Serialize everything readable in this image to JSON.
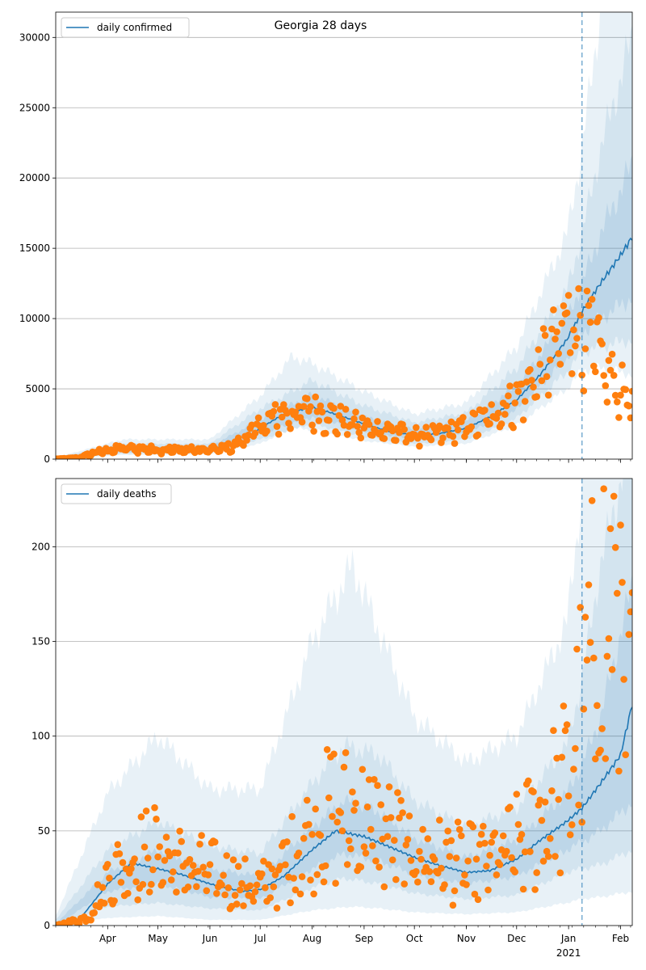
{
  "figure": {
    "title": "Georgia 28 days"
  },
  "chart_data": [
    {
      "type": "scatter",
      "panel": "top",
      "title": "Georgia 28 days",
      "legend": {
        "label": "daily confirmed",
        "placement": "top-left"
      },
      "xlim": [
        "2020-03-01",
        "2021-02-08"
      ],
      "ylim": [
        0,
        31800
      ],
      "yticks": [
        0,
        5000,
        10000,
        15000,
        20000,
        25000,
        30000
      ],
      "grid": "y",
      "forecast_start": "2021-01-09",
      "median_knots": [
        [
          "2020-03-01",
          10
        ],
        [
          "2020-03-20",
          300
        ],
        [
          "2020-04-10",
          700
        ],
        [
          "2020-05-01",
          700
        ],
        [
          "2020-06-01",
          700
        ],
        [
          "2020-06-20",
          1200
        ],
        [
          "2020-07-01",
          2200
        ],
        [
          "2020-07-15",
          3200
        ],
        [
          "2020-08-01",
          3700
        ],
        [
          "2020-08-15",
          3200
        ],
        [
          "2020-09-01",
          2500
        ],
        [
          "2020-09-15",
          2000
        ],
        [
          "2020-10-01",
          1700
        ],
        [
          "2020-10-15",
          1800
        ],
        [
          "2020-11-01",
          2200
        ],
        [
          "2020-11-15",
          3000
        ],
        [
          "2020-12-01",
          4200
        ],
        [
          "2020-12-15",
          6000
        ],
        [
          "2020-12-31",
          8500
        ],
        [
          "2021-01-09",
          10500
        ],
        [
          "2021-01-20",
          12500
        ],
        [
          "2021-02-01",
          14500
        ],
        [
          "2021-02-08",
          15800
        ]
      ],
      "band50_knots": [
        [
          "2020-03-01",
          0,
          40
        ],
        [
          "2020-04-10",
          500,
          900
        ],
        [
          "2020-06-01",
          550,
          900
        ],
        [
          "2020-07-01",
          1800,
          2800
        ],
        [
          "2020-08-01",
          3000,
          4600
        ],
        [
          "2020-09-01",
          2000,
          3000
        ],
        [
          "2020-10-01",
          1400,
          2100
        ],
        [
          "2020-11-01",
          1800,
          2700
        ],
        [
          "2020-12-01",
          3500,
          5200
        ],
        [
          "2020-12-31",
          7200,
          10000
        ],
        [
          "2021-01-09",
          9000,
          12500
        ],
        [
          "2021-01-20",
          10000,
          16000
        ],
        [
          "2021-02-08",
          11500,
          21000
        ]
      ],
      "band80_knots": [
        [
          "2020-03-01",
          0,
          80
        ],
        [
          "2020-04-10",
          400,
          1100
        ],
        [
          "2020-06-01",
          450,
          1100
        ],
        [
          "2020-07-01",
          1400,
          3600
        ],
        [
          "2020-08-01",
          2500,
          5600
        ],
        [
          "2020-09-01",
          1600,
          3800
        ],
        [
          "2020-10-01",
          1100,
          2600
        ],
        [
          "2020-11-01",
          1400,
          3300
        ],
        [
          "2020-12-01",
          2900,
          6500
        ],
        [
          "2020-12-31",
          6200,
          12000
        ],
        [
          "2021-01-09",
          7600,
          16000
        ],
        [
          "2021-01-20",
          8000,
          22000
        ],
        [
          "2021-02-08",
          8500,
          30000
        ]
      ],
      "band95_knots": [
        [
          "2020-03-01",
          0,
          120
        ],
        [
          "2020-04-10",
          300,
          1400
        ],
        [
          "2020-06-01",
          350,
          1400
        ],
        [
          "2020-07-01",
          1100,
          4500
        ],
        [
          "2020-07-20",
          2200,
          7300
        ],
        [
          "2020-08-01",
          2100,
          6800
        ],
        [
          "2020-09-01",
          1300,
          4800
        ],
        [
          "2020-10-01",
          900,
          3200
        ],
        [
          "2020-11-01",
          1100,
          4000
        ],
        [
          "2020-12-01",
          2400,
          8000
        ],
        [
          "2020-12-31",
          5000,
          16000
        ],
        [
          "2021-01-09",
          6300,
          22000
        ],
        [
          "2021-01-20",
          6500,
          32000
        ],
        [
          "2021-02-08",
          6000,
          40000
        ]
      ],
      "observed_knots": [
        [
          "2020-03-01",
          10
        ],
        [
          "2020-03-15",
          100
        ],
        [
          "2020-03-25",
          500
        ],
        [
          "2020-04-10",
          800
        ],
        [
          "2020-05-01",
          700
        ],
        [
          "2020-06-01",
          650
        ],
        [
          "2020-06-15",
          900
        ],
        [
          "2020-07-01",
          2400
        ],
        [
          "2020-07-15",
          3300
        ],
        [
          "2020-08-01",
          3500
        ],
        [
          "2020-08-15",
          3000
        ],
        [
          "2020-09-01",
          2300
        ],
        [
          "2020-09-15",
          2100
        ],
        [
          "2020-10-01",
          1700
        ],
        [
          "2020-10-15",
          1800
        ],
        [
          "2020-11-01",
          2300
        ],
        [
          "2020-11-15",
          3100
        ],
        [
          "2020-12-01",
          4300
        ],
        [
          "2020-12-15",
          6500
        ],
        [
          "2020-12-25",
          8500
        ],
        [
          "2021-01-01",
          9800
        ],
        [
          "2021-01-08",
          9500
        ],
        [
          "2021-01-15",
          8500
        ],
        [
          "2021-01-25",
          6000
        ],
        [
          "2021-02-08",
          4200
        ]
      ],
      "observed_scatter": 0.25
    },
    {
      "type": "scatter",
      "panel": "bottom",
      "legend": {
        "label": "daily deaths",
        "placement": "top-left"
      },
      "xlim": [
        "2020-03-01",
        "2021-02-08"
      ],
      "ylim": [
        0,
        236
      ],
      "yticks": [
        0,
        50,
        100,
        150,
        200
      ],
      "grid": "y",
      "forecast_start": "2021-01-09",
      "xticks": [
        {
          "date": "2020-04-01",
          "label": "Apr"
        },
        {
          "date": "2020-05-01",
          "label": "May"
        },
        {
          "date": "2020-06-01",
          "label": "Jun"
        },
        {
          "date": "2020-07-01",
          "label": "Jul"
        },
        {
          "date": "2020-08-01",
          "label": "Aug"
        },
        {
          "date": "2020-09-01",
          "label": "Sep"
        },
        {
          "date": "2020-10-01",
          "label": "Oct"
        },
        {
          "date": "2020-11-01",
          "label": "Nov"
        },
        {
          "date": "2020-12-01",
          "label": "Dec"
        },
        {
          "date": "2021-01-01",
          "label": "Jan",
          "sublabel": "2021"
        },
        {
          "date": "2021-02-01",
          "label": "Feb"
        }
      ],
      "median_knots": [
        [
          "2020-03-01",
          0
        ],
        [
          "2020-03-15",
          3
        ],
        [
          "2020-04-01",
          22
        ],
        [
          "2020-04-15",
          33
        ],
        [
          "2020-05-01",
          30
        ],
        [
          "2020-05-15",
          27
        ],
        [
          "2020-06-01",
          22
        ],
        [
          "2020-06-20",
          18
        ],
        [
          "2020-07-01",
          19
        ],
        [
          "2020-07-15",
          26
        ],
        [
          "2020-08-01",
          40
        ],
        [
          "2020-08-15",
          50
        ],
        [
          "2020-09-01",
          47
        ],
        [
          "2020-09-15",
          42
        ],
        [
          "2020-10-01",
          36
        ],
        [
          "2020-10-15",
          32
        ],
        [
          "2020-11-01",
          28
        ],
        [
          "2020-11-15",
          29
        ],
        [
          "2020-12-01",
          35
        ],
        [
          "2020-12-15",
          45
        ],
        [
          "2020-12-31",
          55
        ],
        [
          "2021-01-09",
          62
        ],
        [
          "2021-01-20",
          75
        ],
        [
          "2021-02-01",
          90
        ],
        [
          "2021-02-08",
          117
        ]
      ],
      "band50_knots": [
        [
          "2020-03-01",
          0,
          1
        ],
        [
          "2020-04-01",
          18,
          28
        ],
        [
          "2020-05-01",
          22,
          40
        ],
        [
          "2020-06-01",
          15,
          30
        ],
        [
          "2020-07-01",
          14,
          26
        ],
        [
          "2020-08-01",
          30,
          52
        ],
        [
          "2020-08-20",
          38,
          66
        ],
        [
          "2020-09-10",
          34,
          60
        ],
        [
          "2020-10-01",
          27,
          46
        ],
        [
          "2020-11-01",
          22,
          36
        ],
        [
          "2020-12-01",
          26,
          45
        ],
        [
          "2020-12-31",
          40,
          70
        ],
        [
          "2021-01-09",
          44,
          85
        ],
        [
          "2021-01-20",
          50,
          110
        ],
        [
          "2021-02-08",
          65,
          180
        ]
      ],
      "band80_knots": [
        [
          "2020-03-01",
          0,
          3
        ],
        [
          "2020-04-01",
          10,
          40
        ],
        [
          "2020-05-01",
          12,
          55
        ],
        [
          "2020-06-01",
          9,
          42
        ],
        [
          "2020-07-01",
          8,
          38
        ],
        [
          "2020-08-01",
          20,
          75
        ],
        [
          "2020-08-20",
          25,
          95
        ],
        [
          "2020-09-10",
          22,
          90
        ],
        [
          "2020-10-01",
          17,
          66
        ],
        [
          "2020-11-01",
          14,
          52
        ],
        [
          "2020-12-01",
          16,
          62
        ],
        [
          "2020-12-31",
          28,
          95
        ],
        [
          "2021-01-09",
          30,
          130
        ],
        [
          "2021-01-20",
          32,
          190
        ],
        [
          "2021-02-08",
          40,
          260
        ]
      ],
      "band95_knots": [
        [
          "2020-03-01",
          0,
          5
        ],
        [
          "2020-04-01",
          4,
          70
        ],
        [
          "2020-05-01",
          5,
          100
        ],
        [
          "2020-06-01",
          3,
          72
        ],
        [
          "2020-07-01",
          3,
          72
        ],
        [
          "2020-08-01",
          8,
          150
        ],
        [
          "2020-08-25",
          10,
          190
        ],
        [
          "2020-09-10",
          9,
          155
        ],
        [
          "2020-10-01",
          7,
          110
        ],
        [
          "2020-11-01",
          6,
          86
        ],
        [
          "2020-12-01",
          7,
          100
        ],
        [
          "2020-12-31",
          12,
          160
        ],
        [
          "2021-01-09",
          14,
          230
        ],
        [
          "2021-01-20",
          15,
          300
        ],
        [
          "2021-02-08",
          18,
          400
        ]
      ],
      "observed_knots": [
        [
          "2020-03-01",
          0
        ],
        [
          "2020-03-20",
          4
        ],
        [
          "2020-04-01",
          25
        ],
        [
          "2020-04-15",
          35
        ],
        [
          "2020-05-01",
          40
        ],
        [
          "2020-05-15",
          32
        ],
        [
          "2020-06-01",
          28
        ],
        [
          "2020-06-20",
          22
        ],
        [
          "2020-07-01",
          20
        ],
        [
          "2020-07-15",
          30
        ],
        [
          "2020-08-01",
          50
        ],
        [
          "2020-08-15",
          60
        ],
        [
          "2020-09-01",
          55
        ],
        [
          "2020-09-15",
          48
        ],
        [
          "2020-10-01",
          40
        ],
        [
          "2020-10-15",
          35
        ],
        [
          "2020-11-01",
          32
        ],
        [
          "2020-11-15",
          35
        ],
        [
          "2020-12-01",
          42
        ],
        [
          "2020-12-15",
          55
        ],
        [
          "2020-12-31",
          75
        ],
        [
          "2021-01-09",
          110
        ],
        [
          "2021-01-20",
          160
        ],
        [
          "2021-02-01",
          170
        ],
        [
          "2021-02-08",
          180
        ]
      ],
      "observed_scatter": 0.55
    }
  ]
}
